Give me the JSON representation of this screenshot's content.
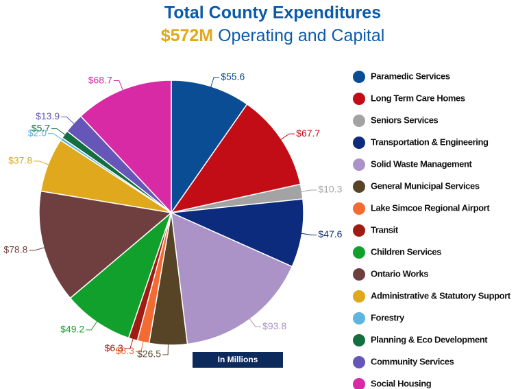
{
  "chart_data": {
    "type": "pie",
    "title": "Total County Expenditures",
    "subtitle": {
      "highlight": "$572M",
      "text": "Operating and Capital"
    },
    "annotation": "In Millions",
    "categories": [
      "Paramedic Services",
      "Long Term Care Homes",
      "Seniors Services",
      "Transportation & Engineering",
      "Solid Waste Management",
      "General Municipal Services",
      "Lake Simcoe Regional Airport",
      "Transit",
      "Children Services",
      "Ontario Works",
      "Administrative & Statutory Support",
      "Forestry",
      "Planning & Eco Development",
      "Community Services",
      "Social Housing"
    ],
    "values": [
      55.6,
      67.7,
      10.3,
      47.6,
      93.8,
      26.5,
      8.3,
      6.3,
      49.2,
      78.8,
      37.8,
      2.0,
      5.7,
      13.9,
      68.7
    ],
    "value_labels": [
      "$55.6",
      "$67.7",
      "$10.3",
      "$47.6",
      "$93.8",
      "$26.5",
      "$8.3",
      "$6.3",
      "$49.2",
      "$78.8",
      "$37.8",
      "$2.0",
      "$5.7",
      "$13.9",
      "$68.7"
    ],
    "colors": [
      "#0b4d94",
      "#c20d16",
      "#a3a3a3",
      "#0c2b7c",
      "#ab93c8",
      "#574326",
      "#f26b33",
      "#a01c12",
      "#12a02c",
      "#6f3f3f",
      "#dfa81d",
      "#5cb6e0",
      "#146e40",
      "#6656b8",
      "#d82aa4"
    ]
  }
}
